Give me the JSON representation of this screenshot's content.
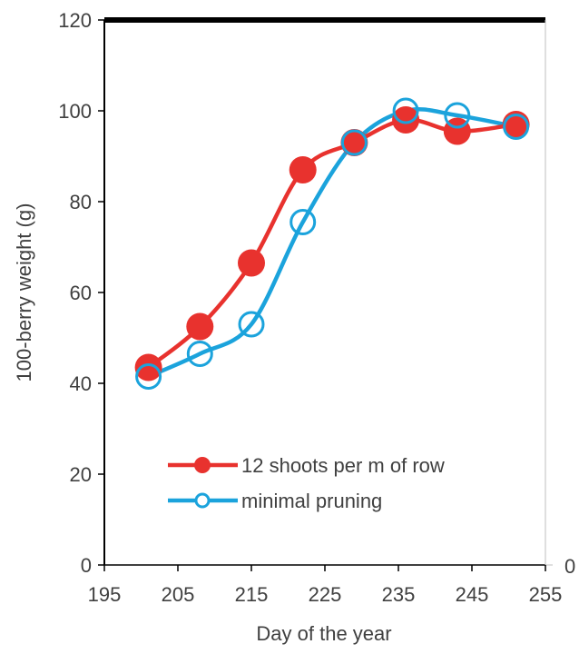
{
  "chart_data": {
    "type": "line",
    "title": "",
    "xlabel": "Day of the year",
    "ylabel": "100-berry weight (g)",
    "xlim": [
      195,
      255
    ],
    "ylim": [
      0,
      120
    ],
    "x_ticks": [
      195,
      205,
      215,
      225,
      235,
      245,
      255
    ],
    "y_ticks": [
      0,
      20,
      40,
      60,
      80,
      100,
      120
    ],
    "right_axis_label": "0",
    "grid": false,
    "legend_position": "bottom-right",
    "series": [
      {
        "name": "12 shoots per m of row",
        "color": "#e8322e",
        "marker": "filled-circle",
        "x": [
          201,
          208,
          215,
          222,
          229,
          236,
          243,
          251
        ],
        "y": [
          43.5,
          52.5,
          66.5,
          87,
          93,
          98,
          95.5,
          97
        ]
      },
      {
        "name": "minimal pruning",
        "color": "#1ba3dc",
        "marker": "open-circle",
        "x": [
          201,
          208,
          215,
          222,
          229,
          236,
          243,
          251
        ],
        "y": [
          41.5,
          46.5,
          53,
          75.5,
          93,
          100,
          99,
          96.5
        ]
      }
    ]
  }
}
